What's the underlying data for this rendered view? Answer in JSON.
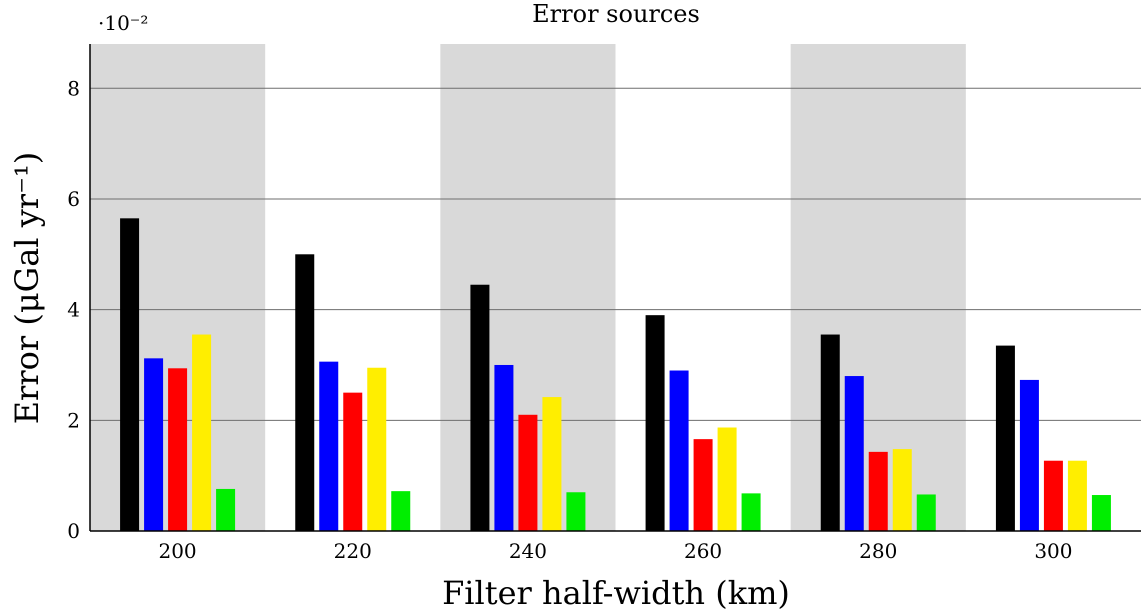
{
  "chart_data": {
    "type": "bar",
    "title": "Error sources",
    "xlabel": "Filter half-width (km)",
    "ylabel": "Error (μGal yr⁻¹)",
    "y_multiplier_label": "·10⁻²",
    "categories": [
      "200",
      "220",
      "240",
      "260",
      "280",
      "300"
    ],
    "ylim": [
      0,
      8.8
    ],
    "yticks": [
      "0",
      "2",
      "4",
      "6",
      "8"
    ],
    "grid": true,
    "alternating_band_color": "#d9d9d9",
    "series": [
      {
        "color": "#000000",
        "values": [
          5.65,
          5.0,
          4.45,
          3.9,
          3.55,
          3.35
        ]
      },
      {
        "color": "#0000ff",
        "values": [
          3.12,
          3.06,
          3.0,
          2.9,
          2.8,
          2.73
        ]
      },
      {
        "color": "#ff0000",
        "values": [
          2.94,
          2.5,
          2.1,
          1.66,
          1.43,
          1.27
        ]
      },
      {
        "color": "#ffee00",
        "values": [
          3.55,
          2.95,
          2.42,
          1.87,
          1.48,
          1.27
        ]
      },
      {
        "color": "#00ee00",
        "values": [
          0.76,
          0.72,
          0.7,
          0.68,
          0.66,
          0.65
        ]
      }
    ]
  }
}
